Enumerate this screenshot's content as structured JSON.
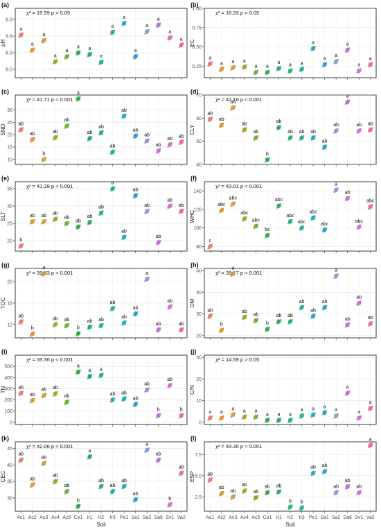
{
  "colors": {
    "Ac1": "#f27a6f",
    "Ac2": "#e39a2a",
    "Ac3": "#d0a32a",
    "Ac4": "#a8a51e",
    "Ac5": "#6fb52c",
    "Co1": "#2fae4a",
    "Ir1": "#21b45a",
    "Ir2": "#1db97f",
    "Ir3": "#17b5a6",
    "Pe1": "#13b3c4",
    "Sa1": "#1fa3d9",
    "Sa2": "#8a9de3",
    "Sa6": "#c46fe0",
    "Sv1": "#e36ad0",
    "Va2": "#f266a4"
  },
  "chart_data": [
    {
      "type": "scatter",
      "panel": "(a)",
      "ylabel": "pH",
      "stat": "χ² = 19.99 p > 0.05",
      "ylim": [
        5.85,
        7.1
      ],
      "ticks": [
        6.0,
        6.3,
        6.6,
        6.9
      ],
      "categories": [
        "Ac1",
        "Ac2",
        "Ac3",
        "Ac4",
        "Ac5",
        "Co1",
        "Ir1",
        "Ir2",
        "Ir3",
        "Pe1",
        "Sa1",
        "Sa2",
        "Sa6",
        "Sv1",
        "Va2"
      ],
      "values": [
        6.62,
        6.35,
        6.52,
        6.14,
        6.23,
        6.3,
        6.27,
        6.13,
        6.67,
        6.83,
        6.23,
        6.68,
        6.8,
        6.57,
        6.44
      ],
      "letters": [
        "a",
        "a",
        "a",
        "a",
        "a",
        "a",
        "a",
        "a",
        "a",
        "a",
        "a",
        "a",
        "a",
        "a",
        "a"
      ]
    },
    {
      "type": "scatter",
      "panel": "(b)",
      "ylabel": "EC",
      "stat": "χ² = 16.33 p > 0.05",
      "ylim": [
        0.1,
        1.0
      ],
      "ticks": [
        0.25,
        0.5,
        0.75,
        1.0
      ],
      "categories": [
        "Ac1",
        "Ac2",
        "Ac3",
        "Ac4",
        "Ac5",
        "Co1",
        "Ir1",
        "Ir2",
        "Ir3",
        "Pe1",
        "Sa1",
        "Sa2",
        "Sa6",
        "Sv1",
        "Va2"
      ],
      "values": [
        0.28,
        0.21,
        0.23,
        0.24,
        0.17,
        0.17,
        0.22,
        0.19,
        0.21,
        0.48,
        0.27,
        0.31,
        0.46,
        0.19,
        0.27
      ],
      "letters": [
        "a",
        "a",
        "a",
        "a",
        "a",
        "a",
        "a",
        "a",
        "a",
        "a",
        "a",
        "a",
        "a",
        "a",
        "a"
      ]
    },
    {
      "type": "scatter",
      "panel": "(c)",
      "ylabel": "SND",
      "stat": "χ² = 41.71 p < 0.001",
      "ylim": [
        8,
        36
      ],
      "ticks": [
        10,
        15,
        20,
        25,
        30
      ],
      "categories": [
        "Ac1",
        "Ac2",
        "Ac3",
        "Ac4",
        "Ac5",
        "Co1",
        "Ir1",
        "Ir2",
        "Ir3",
        "Pe1",
        "Sa1",
        "Sa2",
        "Sa6",
        "Sv1",
        "Va2"
      ],
      "values": [
        22.0,
        18.0,
        10.0,
        18.8,
        23.5,
        34.5,
        18.5,
        20.8,
        13.0,
        27.5,
        19.5,
        17.5,
        13.5,
        16.0,
        17.0
      ],
      "letters": [
        "ab",
        "ab",
        "b",
        "ab",
        "ab",
        "a",
        "ab",
        "ab",
        "ab",
        "ab",
        "ab",
        "ab",
        "ab",
        "ab",
        "ab"
      ]
    },
    {
      "type": "scatter",
      "panel": "(d)",
      "ylabel": "CLY",
      "stat": "χ² = 42.16 p < 0.001",
      "ylim": [
        40,
        70
      ],
      "ticks": [
        40,
        50,
        60,
        70
      ],
      "categories": [
        "Ac1",
        "Ac2",
        "Ac3",
        "Ac4",
        "Ac5",
        "Co1",
        "Ir1",
        "Ir2",
        "Ir3",
        "Pe1",
        "Sa1",
        "Sa2",
        "Sa6",
        "Sv1",
        "Va2"
      ],
      "values": [
        59.5,
        57.0,
        64.5,
        55.0,
        51.5,
        42.0,
        56.0,
        51.5,
        51.5,
        51.5,
        47.5,
        54.5,
        67.0,
        54.5,
        55.0
      ],
      "letters": [
        "ab",
        "ab",
        "ab",
        "ab",
        "ab",
        "b",
        "ab",
        "ab",
        "ab",
        "ab",
        "ab",
        "ab",
        "a",
        "ab",
        "ab"
      ]
    },
    {
      "type": "scatter",
      "panel": "(e)",
      "ylabel": "SLT",
      "stat": "χ² = 41.39 p < 0.001",
      "ylim": [
        17,
        37
      ],
      "ticks": [
        20,
        25,
        30,
        35
      ],
      "categories": [
        "Ac1",
        "Ac2",
        "Ac3",
        "Ac4",
        "Ac5",
        "Co1",
        "Ir1",
        "Ir2",
        "Ir3",
        "Pe1",
        "Sa1",
        "Sa2",
        "Sa6",
        "Sv1",
        "Va2"
      ],
      "values": [
        18.5,
        25.5,
        25.5,
        26.2,
        25.0,
        24.0,
        25.3,
        28.0,
        35.0,
        21.0,
        33.0,
        28.5,
        19.5,
        30.0,
        28.5
      ],
      "letters": [
        "b",
        "ab",
        "ab",
        "ab",
        "ab",
        "ab",
        "ab",
        "ab",
        "a",
        "ab",
        "ab",
        "ab",
        "ab",
        "ab",
        "ab"
      ]
    },
    {
      "type": "scatter",
      "panel": "(f)",
      "ylabel": "WHC",
      "stat": "χ² = 43.01 p < 0.001",
      "ylim": [
        75,
        150
      ],
      "ticks": [
        80,
        100,
        120,
        140
      ],
      "categories": [
        "Ac1",
        "Ac2",
        "Ac3",
        "Ac4",
        "Ac5",
        "Co1",
        "Ir1",
        "Ir2",
        "Ir3",
        "Pe1",
        "Sa1",
        "Sa2",
        "Sa6",
        "Sv1",
        "Va2"
      ],
      "values": [
        80.0,
        119.0,
        126.0,
        110.0,
        102.0,
        92.0,
        124.0,
        107.0,
        100.0,
        111.0,
        98.0,
        141.0,
        132.0,
        101.0,
        123.0
      ],
      "letters": [
        "c",
        "abc",
        "abc",
        "abc",
        "abc",
        "bc",
        "abc",
        "abc",
        "abc",
        "abc",
        "abc",
        "a",
        "ab",
        "abc",
        "abc"
      ]
    },
    {
      "type": "scatter",
      "panel": "(g)",
      "ylabel": "TOC",
      "stat": "χ² = 39.03 p < 0.001",
      "ylim": [
        9.5,
        22.5
      ],
      "ticks": [
        12,
        16,
        20
      ],
      "categories": [
        "Ac1",
        "Ac2",
        "Ac3",
        "Ac4",
        "Ac5",
        "Co1",
        "Ir1",
        "Ir2",
        "Ir3",
        "Pe1",
        "Sa1",
        "Sa2",
        "Sa6",
        "Sv1",
        "Va2"
      ],
      "values": [
        12.5,
        10.2,
        21.5,
        12.0,
        11.8,
        10.3,
        11.5,
        11.8,
        15.0,
        12.3,
        14.0,
        20.5,
        11.0,
        15.3,
        11.0
      ],
      "letters": [
        "ab",
        "b",
        "a",
        "ab",
        "ab",
        "b",
        "ab",
        "ab",
        "ab",
        "ab",
        "ab",
        "a",
        "ab",
        "ab",
        "ab"
      ]
    },
    {
      "type": "scatter",
      "panel": "(h)",
      "ylabel": "OM",
      "stat": "χ² = 39.17 p < 0.001",
      "ylim": [
        19,
        51
      ],
      "ticks": [
        20,
        30,
        40,
        50
      ],
      "categories": [
        "Ac1",
        "Ac2",
        "Ac3",
        "Ac4",
        "Ac5",
        "Co1",
        "Ir1",
        "Ir2",
        "Ir3",
        "Pe1",
        "Sa1",
        "Sa2",
        "Sa6",
        "Sv1",
        "Va2"
      ],
      "values": [
        29.0,
        22.5,
        48.5,
        28.5,
        27.0,
        23.0,
        26.5,
        26.5,
        33.0,
        29.0,
        33.0,
        47.5,
        25.0,
        35.0,
        25.5
      ],
      "letters": [
        "ab",
        "b",
        "a",
        "ab",
        "ab",
        "b",
        "ab",
        "ab",
        "ab",
        "ab",
        "ab",
        "a",
        "ab",
        "ab",
        "ab"
      ]
    },
    {
      "type": "scatter",
      "panel": "(i)",
      "ylabel": "TN",
      "stat": "χ² = 35.36 p < 0.001",
      "ylim": [
        -20,
        600
      ],
      "ticks": [
        0,
        100,
        200,
        300,
        400,
        500
      ],
      "categories": [
        "Ac1",
        "Ac2",
        "Ac3",
        "Ac4",
        "Ac5",
        "Co1",
        "Ir1",
        "Ir2",
        "Ir3",
        "Pe1",
        "Sa1",
        "Sa2",
        "Sa6",
        "Sv1",
        "Va2"
      ],
      "values": [
        260,
        195,
        240,
        255,
        180,
        450,
        410,
        420,
        200,
        210,
        160,
        290,
        60,
        330,
        60
      ],
      "letters": [
        "ab",
        "ab",
        "ab",
        "ab",
        "ab",
        "a",
        "a",
        "a",
        "ab",
        "ab",
        "ab",
        "ab",
        "b",
        "ab",
        "b"
      ]
    },
    {
      "type": "scatter",
      "panel": "(j)",
      "ylabel": "C/N",
      "stat": "χ² = 14.59 p > 0.05",
      "ylim": [
        -1,
        31
      ],
      "ticks": [
        0,
        10,
        20,
        30
      ],
      "categories": [
        "Ac1",
        "Ac2",
        "Ac3",
        "Ac4",
        "Ac5",
        "Co1",
        "Ir1",
        "Ir2",
        "Ir3",
        "Pe1",
        "Sa1",
        "Sa2",
        "Sa6",
        "Sv1",
        "Va2"
      ],
      "values": [
        2.0,
        2.0,
        3.5,
        2.5,
        2.5,
        1.0,
        1.0,
        1.0,
        3.0,
        3.5,
        4.5,
        3.0,
        13.5,
        2.0,
        6.5
      ],
      "letters": [
        "a",
        "a",
        "a",
        "a",
        "a",
        "a",
        "a",
        "a",
        "a",
        "a",
        "a",
        "a",
        "a",
        "a",
        "a"
      ]
    },
    {
      "type": "scatter",
      "panel": "(k)",
      "ylabel": "CEC",
      "stat": "χ² = 42.06 p < 0.001",
      "ylim": [
        26,
        47
      ],
      "ticks": [
        30,
        35,
        40,
        45
      ],
      "categories": [
        "Ac1",
        "Ac2",
        "Ac3",
        "Ac4",
        "Ac5",
        "Co1",
        "Ir1",
        "Ir2",
        "Ir3",
        "Pe1",
        "Sa1",
        "Sa2",
        "Sa6",
        "Sv1",
        "Va2"
      ],
      "values": [
        41.5,
        34.0,
        40.5,
        35.0,
        32.0,
        27.5,
        42.5,
        33.5,
        32.0,
        33.5,
        29.5,
        44.5,
        41.5,
        28.0,
        37.5
      ],
      "letters": [
        "ab",
        "ab",
        "ab",
        "ab",
        "ab",
        "b",
        "a",
        "ab",
        "ab",
        "ab",
        "ab",
        "a",
        "ab",
        "b",
        "ab"
      ]
    },
    {
      "type": "scatter",
      "panel": "(l)",
      "ylabel": "ESP",
      "stat": "χ² = 43.30 p < 0.001",
      "ylim": [
        0.8,
        9.0
      ],
      "ticks": [
        2.5,
        5.0,
        7.5
      ],
      "categories": [
        "Ac1",
        "Ac2",
        "Ac3",
        "Ac4",
        "Ac5",
        "Co1",
        "Ir1",
        "Ir2",
        "Ir3",
        "Pe1",
        "Sa1",
        "Sa2",
        "Sa6",
        "Sv1",
        "Va2"
      ],
      "values": [
        4.5,
        2.9,
        2.5,
        3.2,
        2.4,
        3.0,
        3.1,
        1.3,
        1.2,
        5.3,
        5.5,
        3.0,
        3.7,
        3.0,
        8.6
      ],
      "letters": [
        "ab",
        "ab",
        "ab",
        "ab",
        "ab",
        "ab",
        "ab",
        "b",
        "b",
        "ab",
        "ab",
        "ab",
        "ab",
        "ab",
        "a"
      ]
    }
  ],
  "xlabel": "Soil"
}
